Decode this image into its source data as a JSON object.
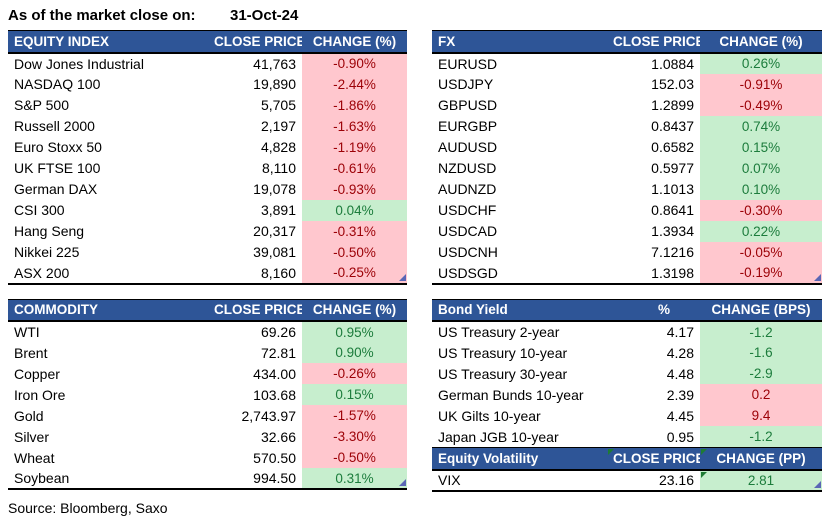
{
  "title": {
    "label": "As of the market close on:",
    "date": "31-Oct-24"
  },
  "source": "Source: Bloomberg, Saxo",
  "colors": {
    "header_bg": "#2E5597",
    "positive_bg": "#C7EECE",
    "positive_text": "#1C7C3C",
    "negative_bg": "#FFC7CE",
    "negative_text": "#9C0006"
  },
  "tables": {
    "equity": {
      "headers": [
        "EQUITY INDEX",
        "CLOSE PRICE",
        "CHANGE (%)"
      ],
      "rows": [
        {
          "name": "Dow Jones Industrial",
          "value": "41,763",
          "change": "-0.90%",
          "color": "red"
        },
        {
          "name": "NASDAQ 100",
          "value": "19,890",
          "change": "-2.44%",
          "color": "red"
        },
        {
          "name": "S&P 500",
          "value": "5,705",
          "change": "-1.86%",
          "color": "red"
        },
        {
          "name": "Russell 2000",
          "value": "2,197",
          "change": "-1.63%",
          "color": "red"
        },
        {
          "name": "Euro Stoxx 50",
          "value": "4,828",
          "change": "-1.19%",
          "color": "red"
        },
        {
          "name": "UK FTSE 100",
          "value": "8,110",
          "change": "-0.61%",
          "color": "red"
        },
        {
          "name": "German DAX",
          "value": "19,078",
          "change": "-0.93%",
          "color": "red"
        },
        {
          "name": "CSI 300",
          "value": "3,891",
          "change": "0.04%",
          "color": "green"
        },
        {
          "name": "Hang Seng",
          "value": "20,317",
          "change": "-0.31%",
          "color": "red"
        },
        {
          "name": "Nikkei 225",
          "value": "39,081",
          "change": "-0.50%",
          "color": "red"
        },
        {
          "name": "ASX 200",
          "value": "8,160",
          "change": "-0.25%",
          "color": "red"
        }
      ]
    },
    "fx": {
      "headers": [
        "FX",
        "CLOSE PRICE",
        "CHANGE (%)"
      ],
      "rows": [
        {
          "name": "EURUSD",
          "value": "1.0884",
          "change": "0.26%",
          "color": "green"
        },
        {
          "name": "USDJPY",
          "value": "152.03",
          "change": "-0.91%",
          "color": "red"
        },
        {
          "name": "GBPUSD",
          "value": "1.2899",
          "change": "-0.49%",
          "color": "red"
        },
        {
          "name": "EURGBP",
          "value": "0.8437",
          "change": "0.74%",
          "color": "green"
        },
        {
          "name": "AUDUSD",
          "value": "0.6582",
          "change": "0.15%",
          "color": "green"
        },
        {
          "name": "NZDUSD",
          "value": "0.5977",
          "change": "0.07%",
          "color": "green"
        },
        {
          "name": "AUDNZD",
          "value": "1.1013",
          "change": "0.10%",
          "color": "green"
        },
        {
          "name": "USDCHF",
          "value": "0.8641",
          "change": "-0.30%",
          "color": "red"
        },
        {
          "name": "USDCAD",
          "value": "1.3934",
          "change": "0.22%",
          "color": "green"
        },
        {
          "name": "USDCNH",
          "value": "7.1216",
          "change": "-0.05%",
          "color": "red"
        },
        {
          "name": "USDSGD",
          "value": "1.3198",
          "change": "-0.19%",
          "color": "red"
        }
      ]
    },
    "commodity": {
      "headers": [
        "COMMODITY",
        "CLOSE PRICE",
        "CHANGE (%)"
      ],
      "rows": [
        {
          "name": "WTI",
          "value": "69.26",
          "change": "0.95%",
          "color": "green"
        },
        {
          "name": "Brent",
          "value": "72.81",
          "change": "0.90%",
          "color": "green"
        },
        {
          "name": "Copper",
          "value": "434.00",
          "change": "-0.26%",
          "color": "red"
        },
        {
          "name": "Iron Ore",
          "value": "103.68",
          "change": "0.15%",
          "color": "green"
        },
        {
          "name": "Gold",
          "value": "2,743.97",
          "change": "-1.57%",
          "color": "red"
        },
        {
          "name": "Silver",
          "value": "32.66",
          "change": "-3.30%",
          "color": "red"
        },
        {
          "name": "Wheat",
          "value": "570.50",
          "change": "-0.50%",
          "color": "red"
        },
        {
          "name": "Soybean",
          "value": "994.50",
          "change": "0.31%",
          "color": "green"
        }
      ]
    },
    "bond": {
      "headers": [
        "Bond Yield",
        "%",
        "CHANGE (BPS)"
      ],
      "rows": [
        {
          "name": "US Treasury 2-year",
          "value": "4.17",
          "change": "-1.2",
          "color": "green"
        },
        {
          "name": "US Treasury 10-year",
          "value": "4.28",
          "change": "-1.6",
          "color": "green"
        },
        {
          "name": "US Treasury 30-year",
          "value": "4.48",
          "change": "-2.9",
          "color": "green"
        },
        {
          "name": "German Bunds 10-year",
          "value": "2.39",
          "change": "0.2",
          "color": "red"
        },
        {
          "name": "UK Gilts 10-year",
          "value": "4.45",
          "change": "9.4",
          "color": "red"
        },
        {
          "name": "Japan JGB 10-year",
          "value": "0.95",
          "change": "-1.2",
          "color": "green"
        }
      ]
    },
    "volatility": {
      "headers": [
        "Equity Volatility",
        "CLOSE PRICE",
        "CHANGE (PP)"
      ],
      "rows": [
        {
          "name": "VIX",
          "value": "23.16",
          "change": "2.81",
          "color": "green",
          "flag": true
        }
      ]
    }
  }
}
